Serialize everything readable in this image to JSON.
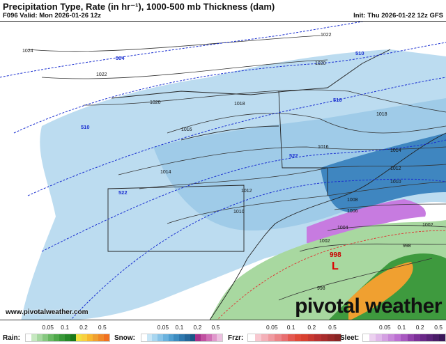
{
  "header": {
    "title": "Precipitation Type, Rate (in hr⁻¹), 1000-500 mb Thickness (dam)",
    "valid": "F096 Valid: Mon 2026-01-26 12z",
    "init": "Init: Thu 2026-01-22 12z GFS"
  },
  "map": {
    "isobars": [
      "1024",
      "1022",
      "1022",
      "1020",
      "1020",
      "1018",
      "1018",
      "1016",
      "1016",
      "1014",
      "1014",
      "1012",
      "1012",
      "1010",
      "1010",
      "1008",
      "1006",
      "1004",
      "1002",
      "1002",
      "998",
      "998"
    ],
    "thickness": [
      "504",
      "510",
      "510",
      "516",
      "522",
      "522"
    ],
    "low": {
      "label": "L",
      "pressure": "998"
    },
    "colors": {
      "snow_light": "#bcdcf0",
      "snow_mid": "#8fc3e6",
      "snow_heavy": "#3a7fb8",
      "sleet": "#c77be0",
      "rain": "#4fae4f",
      "rain_heavy": "#f0a030",
      "thickness": "#1a2fd0",
      "frz_line": "#e03030"
    }
  },
  "watermark": {
    "url": "www.pivotalweather.com",
    "brand": "pivotal weather"
  },
  "legend": [
    {
      "name": "Rain:",
      "ticks": [
        "0.05",
        "0.1",
        "0.2",
        "0.5"
      ],
      "colors": [
        "#ffffff",
        "#c6e8c0",
        "#a6d8a0",
        "#86c880",
        "#68b862",
        "#4ea84a",
        "#389838",
        "#268828",
        "#187818",
        "#f0e040",
        "#f8d040",
        "#f8b830",
        "#f0a030",
        "#f08828",
        "#f07020"
      ]
    },
    {
      "name": "Snow:",
      "ticks": [
        "0.05",
        "0.1",
        "0.2",
        "0.5"
      ],
      "colors": [
        "#ffffff",
        "#c8e6f6",
        "#a8d6f0",
        "#88c4e8",
        "#6ab2de",
        "#509fd0",
        "#3c8cc0",
        "#2e78ae",
        "#24669a",
        "#1a5686",
        "#a8308a",
        "#c050a0",
        "#d070b6",
        "#e098cc",
        "#ecc0e0"
      ]
    },
    {
      "name": "Frzr:",
      "ticks": [
        "0.05",
        "0.1",
        "0.2",
        "0.5"
      ],
      "colors": [
        "#ffffff",
        "#f8c8d0",
        "#f4b0b8",
        "#f09aa0",
        "#ec8488",
        "#e86e70",
        "#e45850",
        "#e04838",
        "#d84030",
        "#c83830",
        "#b83030",
        "#a82c2c",
        "#982828",
        "#882424"
      ]
    },
    {
      "name": "Sleet:",
      "ticks": [
        "0.05",
        "0.1",
        "0.2",
        "0.5"
      ],
      "colors": [
        "#ffffff",
        "#ecd0f0",
        "#e0b8ea",
        "#d4a0e2",
        "#c888da",
        "#bc70d2",
        "#a858c0",
        "#9040aa",
        "#7c3098",
        "#6a2888",
        "#5a2278",
        "#4a1c68",
        "#3a1658"
      ]
    }
  ]
}
